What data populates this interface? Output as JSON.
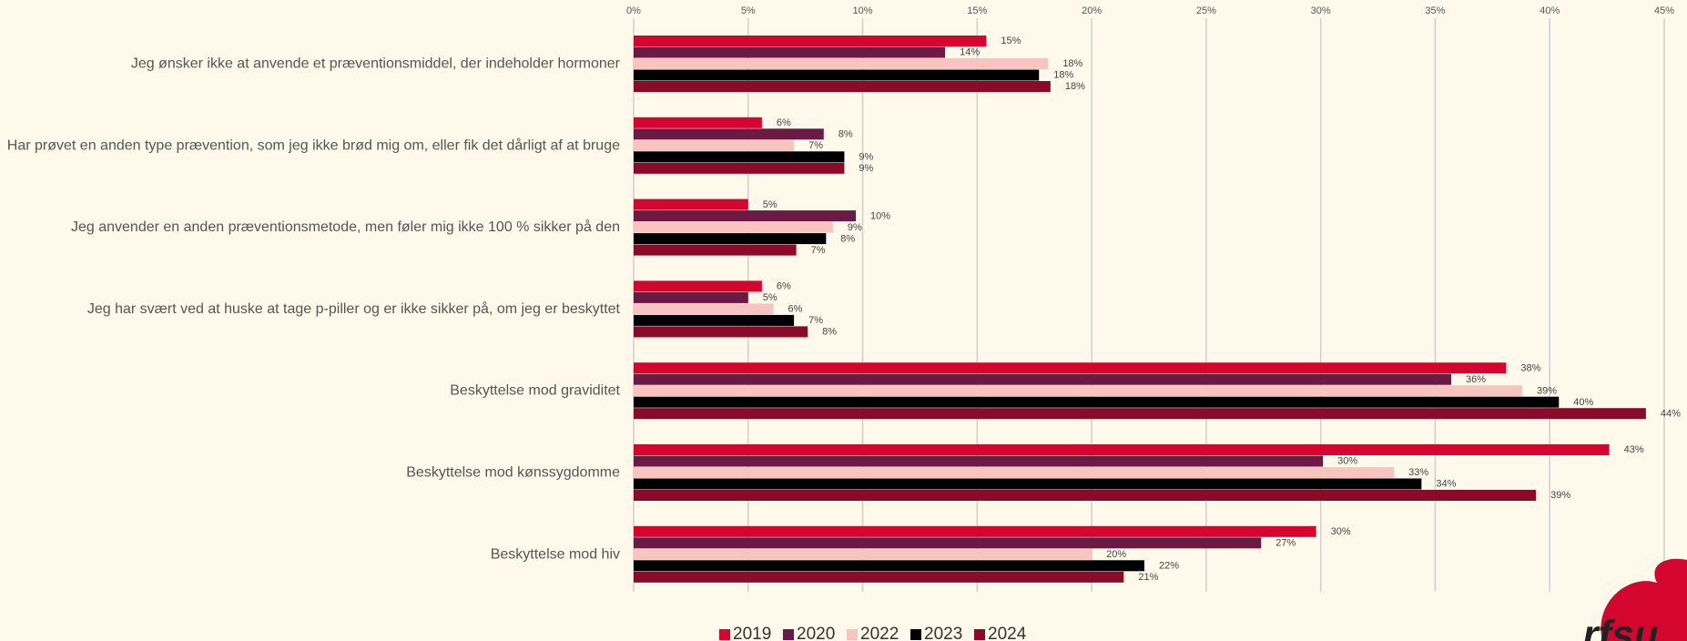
{
  "chart_data": {
    "type": "hbar",
    "categories": [
      "Jeg ønsker ikke at anvende et præventionsmiddel, der indeholder hormoner",
      "Har prøvet en anden type prævention, som jeg ikke brød mig om, eller fik det dårligt af at bruge",
      "Jeg anvender en anden præventionsmetode, men føler mig ikke 100 % sikker på den",
      "Jeg har svært ved at huske at tage p-piller og er ikke sikker på, om jeg er beskyttet",
      "Beskyttelse mod graviditet",
      "Beskyttelse mod kønssygdomme",
      "Beskyttelse mod hiv"
    ],
    "series": [
      {
        "name": "2019",
        "color": "#d4062f",
        "values": [
          15.4,
          5.6,
          5.0,
          5.6,
          38.1,
          42.6,
          29.8
        ],
        "value_labels": [
          "15%",
          "6%",
          "5%",
          "6%",
          "38%",
          "43%",
          "30%"
        ]
      },
      {
        "name": "2020",
        "color": "#6b1a44",
        "values": [
          13.6,
          8.3,
          9.7,
          5.0,
          35.7,
          30.1,
          27.4
        ],
        "value_labels": [
          "14%",
          "8%",
          "10%",
          "5%",
          "36%",
          "30%",
          "27%"
        ]
      },
      {
        "name": "2022",
        "color": "#f7c4c0",
        "values": [
          18.1,
          7.0,
          8.7,
          6.1,
          38.8,
          33.2,
          20.0
        ],
        "value_labels": [
          "18%",
          "7%",
          "9%",
          "6%",
          "39%",
          "33%",
          "20%"
        ]
      },
      {
        "name": "2023",
        "color": "#000000",
        "values": [
          17.7,
          9.2,
          8.4,
          7.0,
          40.4,
          34.4,
          22.3
        ],
        "value_labels": [
          "18%",
          "9%",
          "8%",
          "7%",
          "40%",
          "34%",
          "22%"
        ]
      },
      {
        "name": "2024",
        "color": "#8a0a2a",
        "values": [
          18.2,
          9.2,
          7.1,
          7.6,
          44.2,
          39.4,
          21.4
        ],
        "value_labels": [
          "18%",
          "9%",
          "7%",
          "8%",
          "44%",
          "39%",
          "21%"
        ]
      }
    ],
    "xlim": [
      0,
      45
    ],
    "xticks": [
      {
        "value": 0,
        "label": "0%"
      },
      {
        "value": 5,
        "label": "5%"
      },
      {
        "value": 10,
        "label": "10%"
      },
      {
        "value": 15,
        "label": "15%"
      },
      {
        "value": 20,
        "label": "20%"
      },
      {
        "value": 25,
        "label": "25%"
      },
      {
        "value": 30,
        "label": "30%"
      },
      {
        "value": 35,
        "label": "35%"
      },
      {
        "value": 40,
        "label": "40%"
      },
      {
        "value": 45,
        "label": "45%"
      }
    ],
    "grid": true,
    "legend": "bottom"
  },
  "logo": "rfsu"
}
